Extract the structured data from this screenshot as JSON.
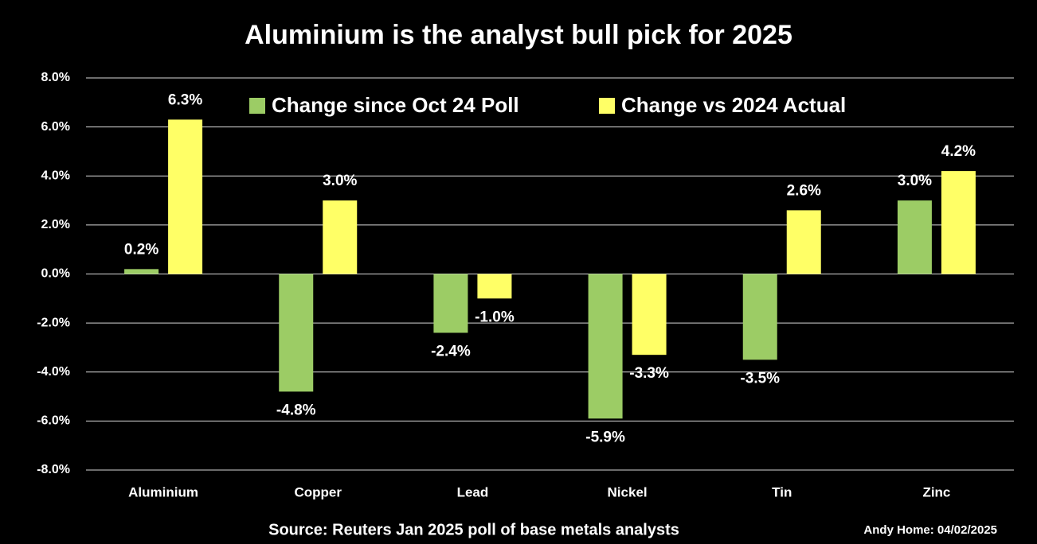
{
  "chart_data": {
    "type": "bar",
    "title": "Aluminium is the analyst bull pick for 2025",
    "categories": [
      "Aluminium",
      "Copper",
      "Lead",
      "Nickel",
      "Tin",
      "Zinc"
    ],
    "series": [
      {
        "name": "Change since Oct 24 Poll",
        "color": "#9ccc65",
        "values": [
          0.2,
          -4.8,
          -2.4,
          -5.9,
          -3.5,
          3.0
        ],
        "value_labels": [
          "0.2%",
          "-4.8%",
          "-2.4%",
          "-5.9%",
          "-3.5%",
          "3.0%"
        ]
      },
      {
        "name": "Change vs 2024 Actual",
        "color": "#ffff66",
        "values": [
          6.3,
          3.0,
          -1.0,
          -3.3,
          2.6,
          4.2
        ],
        "value_labels": [
          "6.3%",
          "3.0%",
          "-1.0%",
          "-3.3%",
          "2.6%",
          "4.2%"
        ]
      }
    ],
    "ylim": [
      -8,
      8
    ],
    "yticks": [
      {
        "value": -8,
        "label": "-8.0%"
      },
      {
        "value": -6,
        "label": "-6.0%"
      },
      {
        "value": -4,
        "label": "-4.0%"
      },
      {
        "value": -2,
        "label": "-2.0%"
      },
      {
        "value": 0,
        "label": "0.0%"
      },
      {
        "value": 2,
        "label": "2.0%"
      },
      {
        "value": 4,
        "label": "4.0%"
      },
      {
        "value": 6,
        "label": "6.0%"
      },
      {
        "value": 8,
        "label": "8.0%"
      }
    ],
    "grid": true,
    "legend": "top",
    "source": "Source: Reuters Jan 2025 poll of base metals analysts",
    "credit": "Andy Home: 04/02/2025"
  }
}
